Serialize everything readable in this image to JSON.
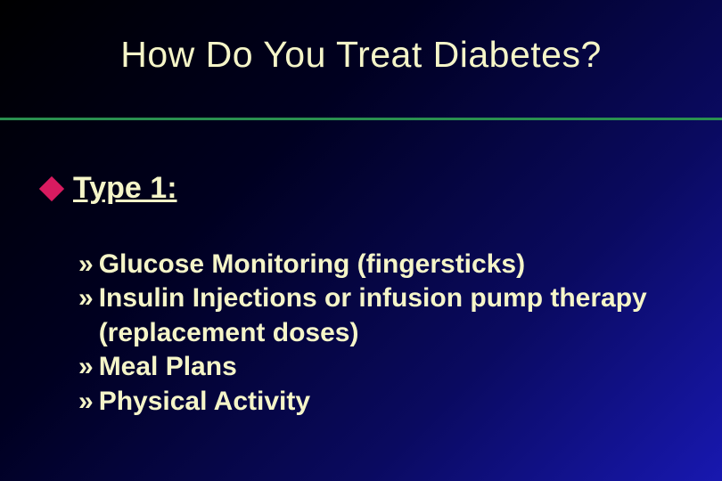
{
  "slide": {
    "title": "How Do You Treat Diabetes?",
    "background_gradient": [
      "#000000",
      "#000020",
      "#0a0a60",
      "#1818b0"
    ],
    "title_color": "#f5f5c8",
    "title_fontsize": 41,
    "divider_color": "#2a9050",
    "bullet_diamond_color": "#d81b60",
    "main_bullet": {
      "label": "Type 1:",
      "underline": true,
      "fontsize": 34,
      "fontweight": "bold",
      "color": "#f5f5c8"
    },
    "sub_bullet_marker": "»",
    "sub_items": [
      "Glucose Monitoring (fingersticks)",
      "Insulin Injections or infusion pump therapy (replacement doses)",
      "Meal Plans",
      "Physical Activity"
    ],
    "sub_fontsize": 30,
    "sub_fontweight": "bold",
    "sub_color": "#f5f5c8"
  }
}
